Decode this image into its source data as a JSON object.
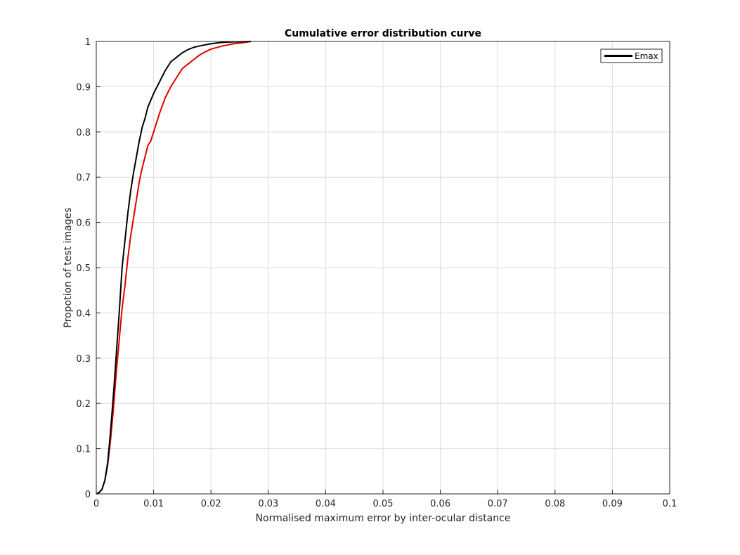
{
  "chart_data": {
    "type": "line",
    "title": "Cumulative error distribution curve",
    "xlabel": "Normalised maximum error by inter-ocular distance",
    "ylabel": "Propotion of test images",
    "xlim": [
      0,
      0.1
    ],
    "ylim": [
      0,
      1
    ],
    "xticks": [
      0,
      0.01,
      0.02,
      0.03,
      0.04,
      0.05,
      0.06,
      0.07,
      0.08,
      0.09,
      0.1
    ],
    "xtick_labels": [
      "0",
      "0.01",
      "0.02",
      "0.03",
      "0.04",
      "0.05",
      "0.06",
      "0.07",
      "0.08",
      "0.09",
      "0.1"
    ],
    "yticks": [
      0,
      0.1,
      0.2,
      0.3,
      0.4,
      0.5,
      0.6,
      0.7,
      0.8,
      0.9,
      1
    ],
    "ytick_labels": [
      "0",
      "0.1",
      "0.2",
      "0.3",
      "0.4",
      "0.5",
      "0.6",
      "0.7",
      "0.8",
      "0.9",
      "1"
    ],
    "grid": true,
    "legend_position": "top-right",
    "legend": [
      {
        "label": "Emax",
        "color": "#000000"
      }
    ],
    "series": [
      {
        "name": "Emax",
        "color": "#000000",
        "x": [
          0,
          0.0005,
          0.001,
          0.0015,
          0.002,
          0.0025,
          0.003,
          0.0035,
          0.004,
          0.0045,
          0.005,
          0.0055,
          0.006,
          0.0065,
          0.007,
          0.0075,
          0.008,
          0.0085,
          0.009,
          0.0095,
          0.01,
          0.011,
          0.012,
          0.013,
          0.014,
          0.015,
          0.016,
          0.017,
          0.018,
          0.02,
          0.022,
          0.024,
          0.027
        ],
        "y": [
          0,
          0.003,
          0.01,
          0.03,
          0.07,
          0.14,
          0.22,
          0.31,
          0.4,
          0.5,
          0.56,
          0.62,
          0.67,
          0.71,
          0.745,
          0.78,
          0.81,
          0.83,
          0.855,
          0.87,
          0.885,
          0.91,
          0.935,
          0.955,
          0.965,
          0.975,
          0.982,
          0.987,
          0.99,
          0.995,
          0.998,
          0.999,
          1.0
        ]
      },
      {
        "color": "#e00000",
        "x": [
          0,
          0.0005,
          0.001,
          0.0015,
          0.002,
          0.0025,
          0.003,
          0.0035,
          0.004,
          0.0045,
          0.005,
          0.0055,
          0.006,
          0.0065,
          0.007,
          0.0075,
          0.008,
          0.0085,
          0.009,
          0.0095,
          0.01,
          0.011,
          0.012,
          0.013,
          0.014,
          0.015,
          0.016,
          0.017,
          0.018,
          0.019,
          0.02,
          0.022,
          0.024,
          0.026,
          0.027
        ],
        "y": [
          0,
          0.003,
          0.01,
          0.03,
          0.065,
          0.12,
          0.19,
          0.27,
          0.34,
          0.41,
          0.46,
          0.52,
          0.57,
          0.61,
          0.65,
          0.69,
          0.72,
          0.745,
          0.77,
          0.78,
          0.8,
          0.84,
          0.875,
          0.9,
          0.92,
          0.94,
          0.95,
          0.96,
          0.97,
          0.977,
          0.983,
          0.99,
          0.995,
          0.998,
          1.0
        ]
      }
    ]
  }
}
